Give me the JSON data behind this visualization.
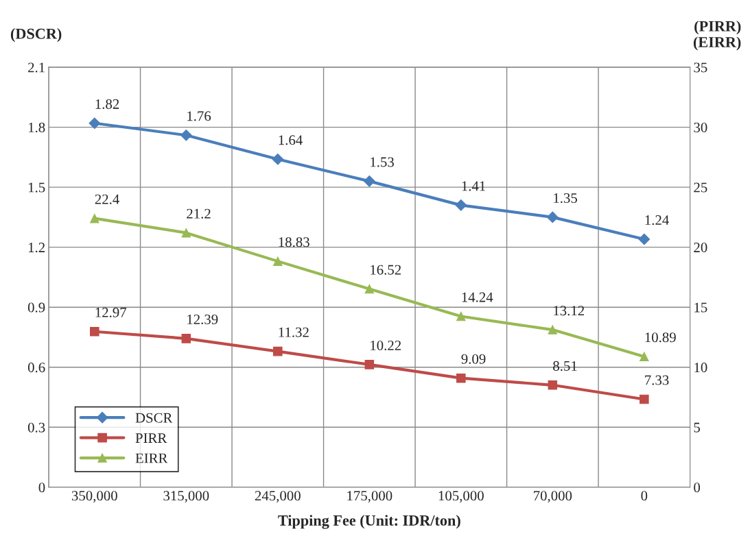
{
  "chart_data": {
    "type": "line",
    "xlabel": "Tipping Fee (Unit: IDR/ton)",
    "ylabel": "(DSCR)",
    "y2label": "(PIRR)\n(EIRR)",
    "categories": [
      "350,000",
      "315,000",
      "245,000",
      "175,000",
      "105,000",
      "70,000",
      "0"
    ],
    "series": [
      {
        "name": "DSCR",
        "color": "#4a7ebb",
        "marker": "diamond",
        "values": [
          1.82,
          1.76,
          1.64,
          1.53,
          1.41,
          1.35,
          1.24
        ]
      },
      {
        "name": "PIRR",
        "color": "#be4b48",
        "marker": "square",
        "axis": "y2",
        "values": [
          12.97,
          12.39,
          11.32,
          10.22,
          9.09,
          8.51,
          7.33
        ]
      },
      {
        "name": "EIRR",
        "color": "#98b954",
        "marker": "triangle",
        "axis": "y2",
        "values": [
          22.4,
          21.2,
          18.83,
          16.52,
          14.24,
          13.12,
          10.89
        ]
      }
    ],
    "ylim": [
      0,
      2.1
    ],
    "yticks": [
      {
        "value": 0,
        "label": "0"
      },
      0.3,
      0.6,
      0.9,
      1.2,
      1.5,
      1.8,
      2.1
    ],
    "y2lim": [
      0,
      35
    ],
    "y2ticks": [
      0,
      5,
      10,
      15,
      20,
      25,
      30,
      35
    ],
    "grid": true,
    "legend": "bottom left",
    "data_labels": true
  }
}
